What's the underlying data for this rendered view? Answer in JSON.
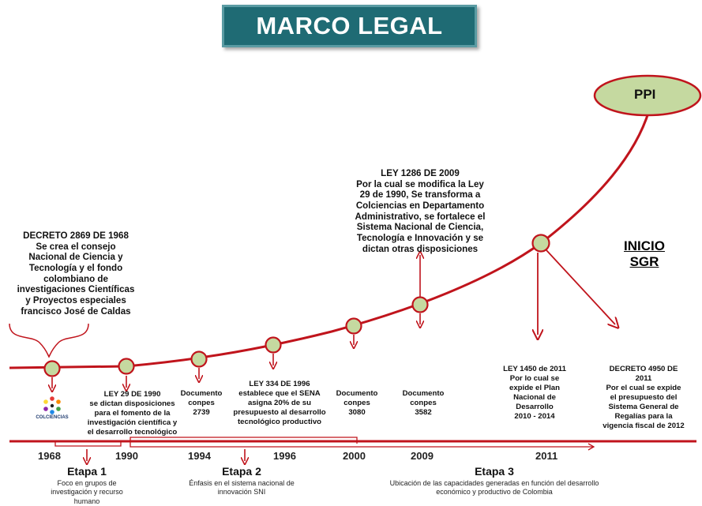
{
  "title": "MARCO LEGAL",
  "ppi_label": "PPI",
  "inicio_sgr": "INICIO\nSGR",
  "logo_text": "COLCIENCIAS",
  "events": {
    "decreto_1968": "DECRETO 2869 DE  1968\nSe crea el consejo\nNacional de Ciencia y\nTecnología y el fondo\ncolombiano de\ninvestigaciones Científicas\ny Proyectos especiales\nfrancisco José de Caldas",
    "ley_29_1990": "LEY 29 DE 1990\nse dictan disposiciones\npara el fomento de la\ninvestigación científica y\nel desarrollo tecnológico",
    "conpes_2739": "Documento\nconpes\n2739",
    "ley_334_1996": "LEY 334 DE 1996\nestablece que el SENA\nasigna 20% de su\npresupuesto al desarrollo\ntecnológico productivo",
    "conpes_3080": "Documento\nconpes\n3080",
    "conpes_3582": "Documento\nconpes\n3582",
    "ley_1286_2009": "LEY 1286 DE 2009\nPor la cual se modifica la Ley\n29 de 1990, Se transforma a\nColciencias en Departamento\nAdministrativo, se fortalece el\nSistema Nacional de Ciencia,\nTecnología e Innovación y se\ndictan otras disposiciones",
    "ley_1450_2011": "LEY 1450 de 2011\nPor lo cual se\nexpide el  Plan\nNacional de\nDesarrollo\n2010 - 2014",
    "decreto_4950_2011": "DECRETO 4950 DE\n2011\nPor el cual se expide\nel presupuesto del\nSistema General de\nRegalías  para la\nvigencia fiscal  de 2012"
  },
  "years": [
    "1968",
    "1990",
    "1994",
    "1996",
    "2000",
    "2009",
    "2011"
  ],
  "etapas": [
    {
      "label": "Etapa 1",
      "desc": "Foco en grupos de\ninvestigación  y recurso\nhumano"
    },
    {
      "label": "Etapa 2",
      "desc": "Énfasis en el sistema nacional de\ninnovación SNI"
    },
    {
      "label": "Etapa 3",
      "desc": "Ubicación de las capacidades generadas en función del desarrollo\neconómico y productivo de Colombia"
    }
  ],
  "colors": {
    "accent_red": "#c0141c",
    "node_fill": "#c5d9a0",
    "title_bg": "#1f6b74",
    "ppi_fill": "#c5d9a0"
  }
}
